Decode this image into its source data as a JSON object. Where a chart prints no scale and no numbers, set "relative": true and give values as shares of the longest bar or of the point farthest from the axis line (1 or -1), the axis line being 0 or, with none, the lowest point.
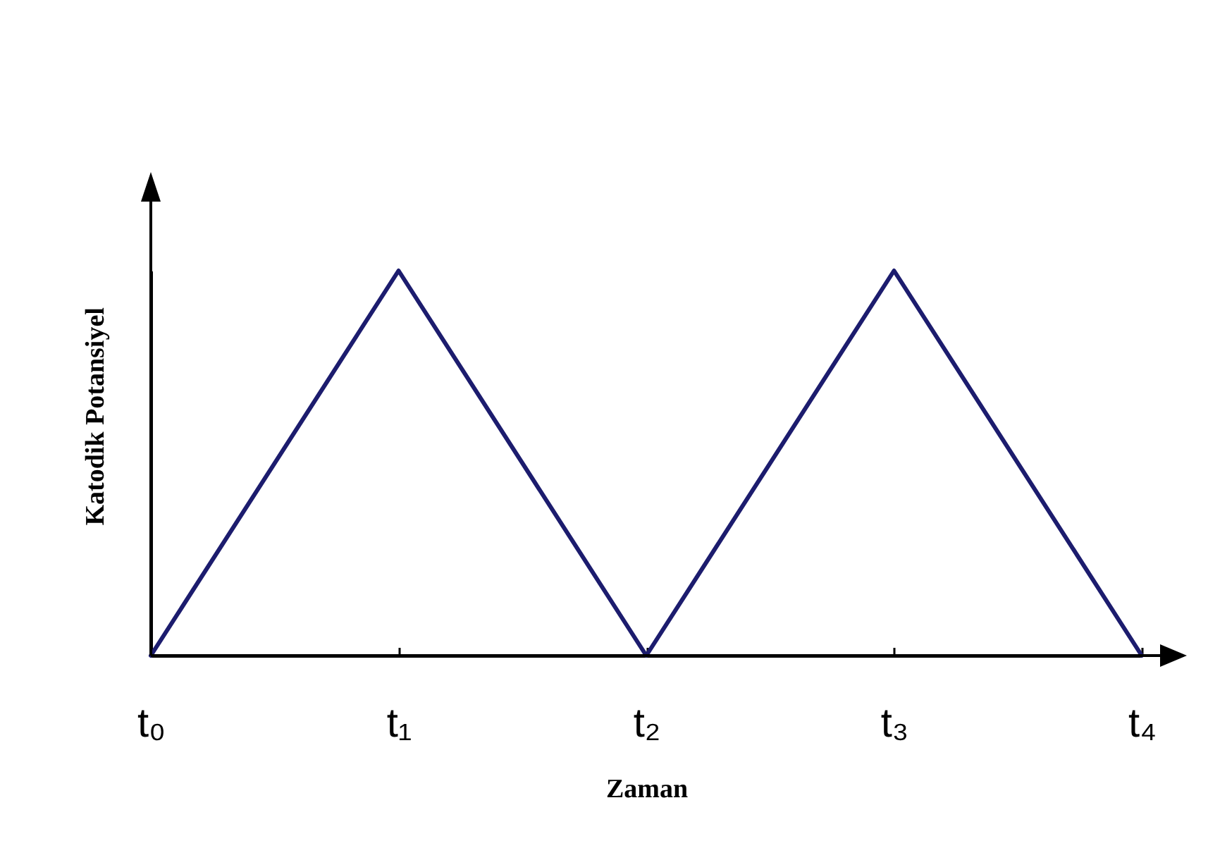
{
  "chart_data": {
    "type": "line",
    "xlabel": "Zaman",
    "ylabel": "Katodik Potansiyel",
    "categories": [
      "t₀",
      "t₁",
      "t₂",
      "t₃",
      "t₄"
    ],
    "relative": true,
    "series": [
      {
        "color": "#1c1c6e",
        "values": [
          0,
          1,
          0,
          1,
          0
        ]
      }
    ]
  }
}
